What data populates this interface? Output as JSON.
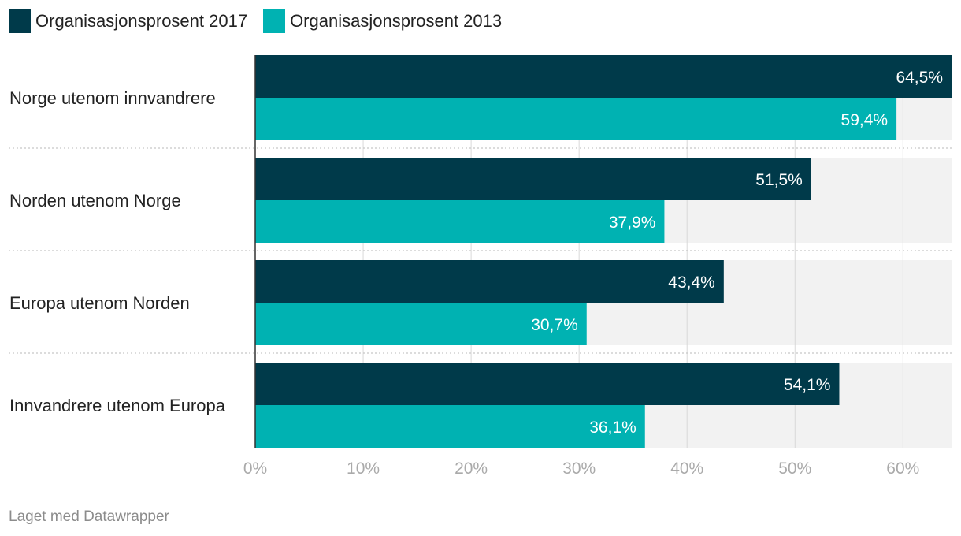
{
  "legend": [
    {
      "label": "Organisasjonsprosent 2017",
      "color": "#003a4a"
    },
    {
      "label": "Organisasjonsprosent 2013",
      "color": "#00b2b2"
    }
  ],
  "chart_data": {
    "type": "bar",
    "orientation": "horizontal",
    "categories": [
      "Norge utenom innvandrere",
      "Norden utenom Norge",
      "Europa utenom Norden",
      "Innvandrere utenom Europa"
    ],
    "series": [
      {
        "name": "Organisasjonsprosent 2017",
        "values": [
          64.5,
          51.5,
          43.4,
          54.1
        ],
        "labels": [
          "64,5%",
          "51,5%",
          "43,4%",
          "54,1%"
        ],
        "color": "#003a4a"
      },
      {
        "name": "Organisasjonsprosent 2013",
        "values": [
          59.4,
          37.9,
          30.7,
          36.1
        ],
        "labels": [
          "59,4%",
          "37,9%",
          "30,7%",
          "36,1%"
        ],
        "color": "#00b2b2"
      }
    ],
    "xlim": [
      0,
      64.5
    ],
    "xticks": [
      0,
      10,
      20,
      30,
      40,
      50,
      60
    ],
    "xtick_labels": [
      "0%",
      "10%",
      "20%",
      "30%",
      "40%",
      "50%",
      "60%"
    ],
    "grid": true,
    "legend_position": "top-left"
  },
  "footer": {
    "credit": "Laget med Datawrapper"
  }
}
